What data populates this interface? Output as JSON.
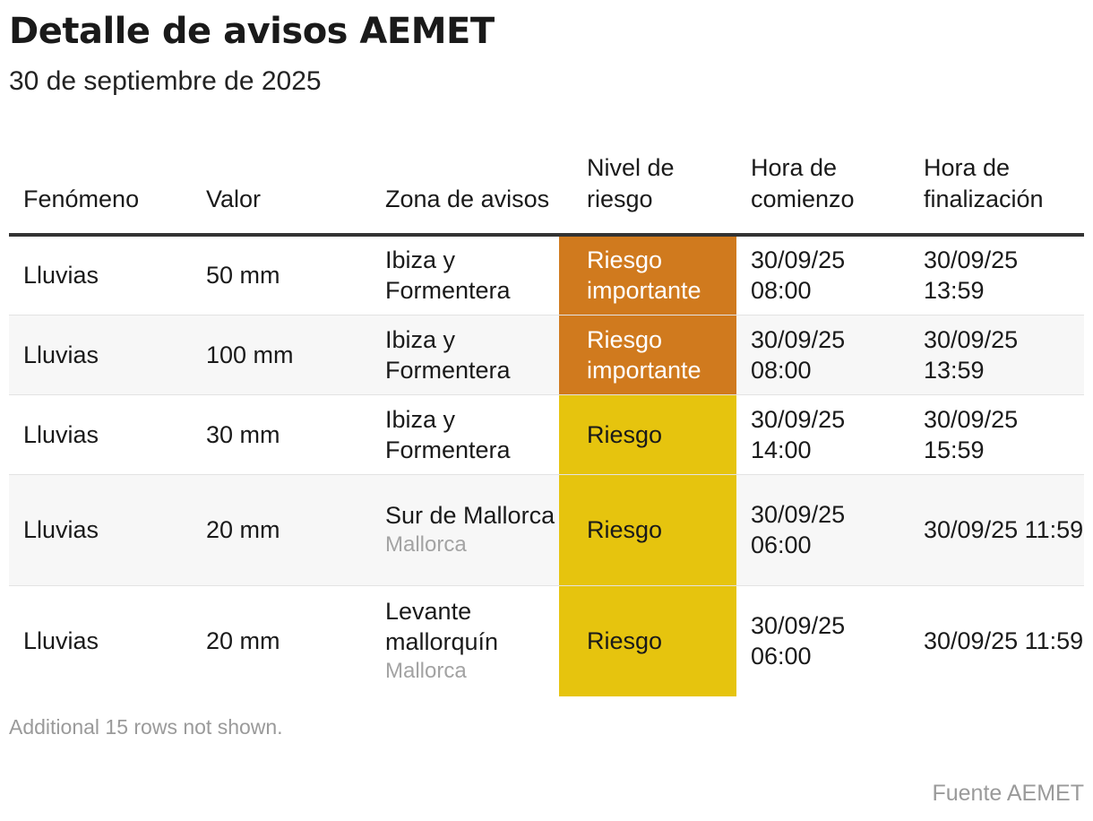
{
  "title": "Detalle de avisos AEMET",
  "subtitle": "30 de septiembre de 2025",
  "colors": {
    "riesgo_importante": "#d07a1e",
    "riesgo": "#e6c40e",
    "header_rule": "#333333"
  },
  "chart_data": {
    "type": "table",
    "columns": [
      "Fenómeno",
      "Valor",
      "Zona de avisos",
      "Nivel de riesgo",
      "Hora de comienzo",
      "Hora de finalización"
    ],
    "rows": [
      {
        "fenomeno": "Lluvias",
        "valor": "50 mm",
        "zona": "Ibiza y Formentera",
        "zona_sub": "",
        "nivel": "Riesgo importante",
        "comienzo": "30/09/25 08:00",
        "fin": "30/09/25 13:59"
      },
      {
        "fenomeno": "Lluvias",
        "valor": "100 mm",
        "zona": "Ibiza y Formentera",
        "zona_sub": "",
        "nivel": "Riesgo importante",
        "comienzo": "30/09/25 08:00",
        "fin": "30/09/25 13:59"
      },
      {
        "fenomeno": "Lluvias",
        "valor": "30 mm",
        "zona": "Ibiza y Formentera",
        "zona_sub": "",
        "nivel": "Riesgo",
        "comienzo": "30/09/25 14:00",
        "fin": "30/09/25 15:59"
      },
      {
        "fenomeno": "Lluvias",
        "valor": "20 mm",
        "zona": "Sur de Mallorca",
        "zona_sub": "Mallorca",
        "nivel": "Riesgo",
        "comienzo": "30/09/25 06:00",
        "fin": "30/09/25 11:59"
      },
      {
        "fenomeno": "Lluvias",
        "valor": "20 mm",
        "zona": "Levante mallorquín",
        "zona_sub": "Mallorca",
        "nivel": "Riesgo",
        "comienzo": "30/09/25 06:00",
        "fin": "30/09/25 11:59"
      }
    ]
  },
  "footnote": "Additional 15 rows not shown.",
  "source": "Fuente AEMET"
}
